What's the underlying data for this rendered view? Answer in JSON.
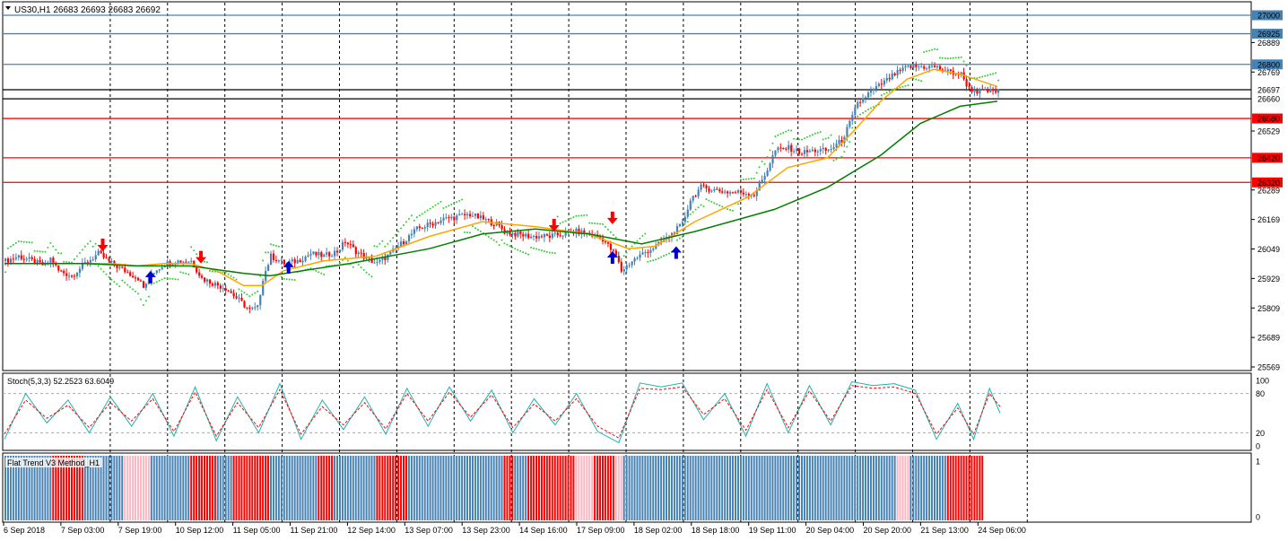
{
  "chart_data": {
    "type": "candlestick",
    "symbol_header": "US30,H1  26683 26693 26683 26692",
    "price_axis": {
      "ticks": [
        "26889",
        "26769",
        "26529",
        "26289",
        "26169",
        "26049",
        "25929",
        "25809",
        "25689",
        "25569"
      ],
      "range": [
        25569,
        27000
      ]
    },
    "levels": [
      {
        "label": "27000",
        "value": 27000,
        "color": "#4682b4"
      },
      {
        "label": "26925",
        "value": 26925,
        "color": "#4682b4"
      },
      {
        "label": "26800",
        "value": 26800,
        "color": "#4682b4"
      },
      {
        "label": "26697",
        "value": 26697,
        "color": "#000000"
      },
      {
        "label": "26660",
        "value": 26660,
        "color": "#000000"
      },
      {
        "label": "26580",
        "value": 26580,
        "color": "#ff0000"
      },
      {
        "label": "26420",
        "value": 26420,
        "color": "#ff0000"
      },
      {
        "label": "26320",
        "value": 26320,
        "color": "#ff0000"
      }
    ],
    "time_axis": [
      "6 Sep 2018",
      "7 Sep 03:00",
      "7 Sep 19:00",
      "10 Sep 12:00",
      "11 Sep 05:00",
      "11 Sep 21:00",
      "12 Sep 14:00",
      "13 Sep 07:00",
      "13 Sep 23:00",
      "14 Sep 16:00",
      "17 Sep 09:00",
      "18 Sep 02:00",
      "18 Sep 18:00",
      "19 Sep 11:00",
      "20 Sep 04:00",
      "20 Sep 20:00",
      "21 Sep 13:00",
      "24 Sep 06:00"
    ],
    "price_path": [
      [
        0,
        26000
      ],
      [
        5,
        26020
      ],
      [
        10,
        26000
      ],
      [
        15,
        25980
      ],
      [
        17,
        26010
      ],
      [
        20,
        25960
      ],
      [
        25,
        25940
      ],
      [
        30,
        25990
      ],
      [
        35,
        26030
      ],
      [
        40,
        25990
      ],
      [
        45,
        25960
      ],
      [
        50,
        25930
      ],
      [
        52,
        25890
      ],
      [
        55,
        25950
      ],
      [
        60,
        25990
      ],
      [
        65,
        26000
      ],
      [
        70,
        26000
      ],
      [
        74,
        25930
      ],
      [
        78,
        25910
      ],
      [
        83,
        25890
      ],
      [
        88,
        25840
      ],
      [
        92,
        25800
      ],
      [
        95,
        25810
      ],
      [
        97,
        25930
      ],
      [
        100,
        26020
      ],
      [
        105,
        25990
      ],
      [
        110,
        26000
      ],
      [
        115,
        26030
      ],
      [
        120,
        26020
      ],
      [
        125,
        26040
      ],
      [
        128,
        26080
      ],
      [
        132,
        26040
      ],
      [
        136,
        26010
      ],
      [
        140,
        25990
      ],
      [
        145,
        26030
      ],
      [
        150,
        26080
      ],
      [
        155,
        26130
      ],
      [
        160,
        26150
      ],
      [
        165,
        26170
      ],
      [
        170,
        26180
      ],
      [
        175,
        26190
      ],
      [
        180,
        26170
      ],
      [
        185,
        26150
      ],
      [
        188,
        26120
      ],
      [
        192,
        26110
      ],
      [
        198,
        26100
      ],
      [
        205,
        26100
      ],
      [
        210,
        26110
      ],
      [
        215,
        26120
      ],
      [
        220,
        26110
      ],
      [
        225,
        26090
      ],
      [
        230,
        26020
      ],
      [
        232,
        25960
      ],
      [
        236,
        26000
      ],
      [
        240,
        26030
      ],
      [
        245,
        26060
      ],
      [
        250,
        26100
      ],
      [
        255,
        26150
      ],
      [
        258,
        26250
      ],
      [
        262,
        26300
      ],
      [
        267,
        26290
      ],
      [
        272,
        26280
      ],
      [
        277,
        26280
      ],
      [
        282,
        26270
      ],
      [
        286,
        26350
      ],
      [
        290,
        26450
      ],
      [
        295,
        26460
      ],
      [
        300,
        26440
      ],
      [
        305,
        26450
      ],
      [
        310,
        26450
      ],
      [
        315,
        26490
      ],
      [
        318,
        26560
      ],
      [
        321,
        26640
      ],
      [
        325,
        26680
      ],
      [
        330,
        26720
      ],
      [
        335,
        26760
      ],
      [
        340,
        26790
      ],
      [
        345,
        26790
      ],
      [
        350,
        26790
      ],
      [
        355,
        26770
      ],
      [
        360,
        26760
      ],
      [
        363,
        26700
      ],
      [
        366,
        26690
      ],
      [
        370,
        26690
      ],
      [
        374,
        26690
      ]
    ],
    "ma_fast": [
      [
        0,
        25990
      ],
      [
        20,
        25990
      ],
      [
        40,
        25990
      ],
      [
        50,
        25980
      ],
      [
        60,
        25990
      ],
      [
        70,
        25990
      ],
      [
        80,
        25960
      ],
      [
        90,
        25900
      ],
      [
        97,
        25900
      ],
      [
        105,
        25960
      ],
      [
        120,
        26000
      ],
      [
        140,
        26020
      ],
      [
        160,
        26100
      ],
      [
        180,
        26160
      ],
      [
        200,
        26140
      ],
      [
        220,
        26110
      ],
      [
        235,
        26050
      ],
      [
        245,
        26060
      ],
      [
        260,
        26160
      ],
      [
        280,
        26260
      ],
      [
        295,
        26380
      ],
      [
        310,
        26420
      ],
      [
        320,
        26530
      ],
      [
        330,
        26650
      ],
      [
        340,
        26740
      ],
      [
        350,
        26780
      ],
      [
        360,
        26760
      ],
      [
        374,
        26710
      ]
    ],
    "ma_slow": [
      [
        0,
        25990
      ],
      [
        30,
        25990
      ],
      [
        50,
        25980
      ],
      [
        70,
        25980
      ],
      [
        90,
        25950
      ],
      [
        100,
        25940
      ],
      [
        130,
        25990
      ],
      [
        160,
        26050
      ],
      [
        180,
        26110
      ],
      [
        200,
        26130
      ],
      [
        220,
        26110
      ],
      [
        240,
        26070
      ],
      [
        260,
        26120
      ],
      [
        290,
        26210
      ],
      [
        310,
        26300
      ],
      [
        330,
        26430
      ],
      [
        345,
        26560
      ],
      [
        360,
        26630
      ],
      [
        374,
        26650
      ]
    ],
    "up_arrows": [
      [
        55,
        25960
      ],
      [
        107,
        26000
      ],
      [
        229,
        26040
      ],
      [
        253,
        26060
      ]
    ],
    "down_arrows": [
      [
        37,
        26040
      ],
      [
        74,
        25990
      ],
      [
        207,
        26120
      ],
      [
        229,
        26150
      ]
    ],
    "stochastic": {
      "label": "Stoch(5,3,3) 52.2523 63.6049",
      "levels": [
        100,
        80,
        20,
        0
      ],
      "main": [
        [
          0,
          10
        ],
        [
          8,
          80
        ],
        [
          16,
          35
        ],
        [
          24,
          70
        ],
        [
          32,
          20
        ],
        [
          40,
          75
        ],
        [
          48,
          30
        ],
        [
          56,
          80
        ],
        [
          64,
          15
        ],
        [
          72,
          90
        ],
        [
          80,
          8
        ],
        [
          88,
          75
        ],
        [
          96,
          20
        ],
        [
          104,
          95
        ],
        [
          112,
          10
        ],
        [
          120,
          70
        ],
        [
          128,
          25
        ],
        [
          136,
          75
        ],
        [
          144,
          18
        ],
        [
          152,
          88
        ],
        [
          160,
          30
        ],
        [
          168,
          90
        ],
        [
          176,
          38
        ],
        [
          184,
          85
        ],
        [
          192,
          20
        ],
        [
          200,
          72
        ],
        [
          208,
          32
        ],
        [
          216,
          80
        ],
        [
          224,
          22
        ],
        [
          232,
          5
        ],
        [
          240,
          96
        ],
        [
          248,
          90
        ],
        [
          256,
          96
        ],
        [
          264,
          40
        ],
        [
          272,
          80
        ],
        [
          280,
          15
        ],
        [
          288,
          95
        ],
        [
          296,
          20
        ],
        [
          304,
          92
        ],
        [
          312,
          32
        ],
        [
          320,
          98
        ],
        [
          328,
          92
        ],
        [
          336,
          95
        ],
        [
          344,
          85
        ],
        [
          352,
          10
        ],
        [
          360,
          65
        ],
        [
          366,
          10
        ],
        [
          372,
          88
        ],
        [
          376,
          50
        ]
      ],
      "signal": [
        [
          0,
          18
        ],
        [
          8,
          70
        ],
        [
          16,
          42
        ],
        [
          24,
          62
        ],
        [
          32,
          28
        ],
        [
          40,
          66
        ],
        [
          48,
          38
        ],
        [
          56,
          72
        ],
        [
          64,
          22
        ],
        [
          72,
          82
        ],
        [
          80,
          15
        ],
        [
          88,
          66
        ],
        [
          96,
          28
        ],
        [
          104,
          86
        ],
        [
          112,
          18
        ],
        [
          120,
          60
        ],
        [
          128,
          32
        ],
        [
          136,
          66
        ],
        [
          144,
          26
        ],
        [
          152,
          80
        ],
        [
          160,
          38
        ],
        [
          168,
          82
        ],
        [
          176,
          44
        ],
        [
          184,
          78
        ],
        [
          192,
          28
        ],
        [
          200,
          64
        ],
        [
          208,
          38
        ],
        [
          216,
          72
        ],
        [
          224,
          30
        ],
        [
          232,
          12
        ],
        [
          240,
          88
        ],
        [
          248,
          86
        ],
        [
          256,
          90
        ],
        [
          264,
          48
        ],
        [
          272,
          72
        ],
        [
          280,
          24
        ],
        [
          288,
          86
        ],
        [
          296,
          28
        ],
        [
          304,
          84
        ],
        [
          312,
          38
        ],
        [
          320,
          92
        ],
        [
          328,
          88
        ],
        [
          336,
          90
        ],
        [
          344,
          80
        ],
        [
          352,
          18
        ],
        [
          360,
          58
        ],
        [
          366,
          18
        ],
        [
          372,
          80
        ],
        [
          376,
          60
        ]
      ]
    },
    "trend_indicator": {
      "label": "Flat Trend V3 Method_H1",
      "levels": [
        1,
        0
      ],
      "segments": [
        {
          "from": 0,
          "to": 18,
          "state": "up"
        },
        {
          "from": 18,
          "to": 30,
          "state": "down"
        },
        {
          "from": 30,
          "to": 45,
          "state": "up"
        },
        {
          "from": 45,
          "to": 55,
          "state": "flat"
        },
        {
          "from": 55,
          "to": 70,
          "state": "up"
        },
        {
          "from": 70,
          "to": 80,
          "state": "down"
        },
        {
          "from": 80,
          "to": 86,
          "state": "up"
        },
        {
          "from": 86,
          "to": 100,
          "state": "down"
        },
        {
          "from": 100,
          "to": 118,
          "state": "up"
        },
        {
          "from": 118,
          "to": 124,
          "state": "down"
        },
        {
          "from": 124,
          "to": 140,
          "state": "up"
        },
        {
          "from": 140,
          "to": 152,
          "state": "down"
        },
        {
          "from": 152,
          "to": 188,
          "state": "up"
        },
        {
          "from": 188,
          "to": 192,
          "state": "down"
        },
        {
          "from": 192,
          "to": 197,
          "state": "up"
        },
        {
          "from": 197,
          "to": 215,
          "state": "down"
        },
        {
          "from": 215,
          "to": 222,
          "state": "flat"
        },
        {
          "from": 222,
          "to": 230,
          "state": "down"
        },
        {
          "from": 230,
          "to": 233,
          "state": "flat"
        },
        {
          "from": 233,
          "to": 336,
          "state": "up"
        },
        {
          "from": 336,
          "to": 341,
          "state": "flat"
        },
        {
          "from": 341,
          "to": 355,
          "state": "up"
        },
        {
          "from": 355,
          "to": 369,
          "state": "down"
        }
      ]
    },
    "colors": {
      "bull": "#4682b4",
      "bear": "#ff0000",
      "ma_fast": "#ffa500",
      "ma_slow": "#008000",
      "sar": "#32cd32",
      "stoch_main": "#20b2aa",
      "stoch_signal": "#ff0000",
      "flat": "#ffb6c1"
    }
  }
}
